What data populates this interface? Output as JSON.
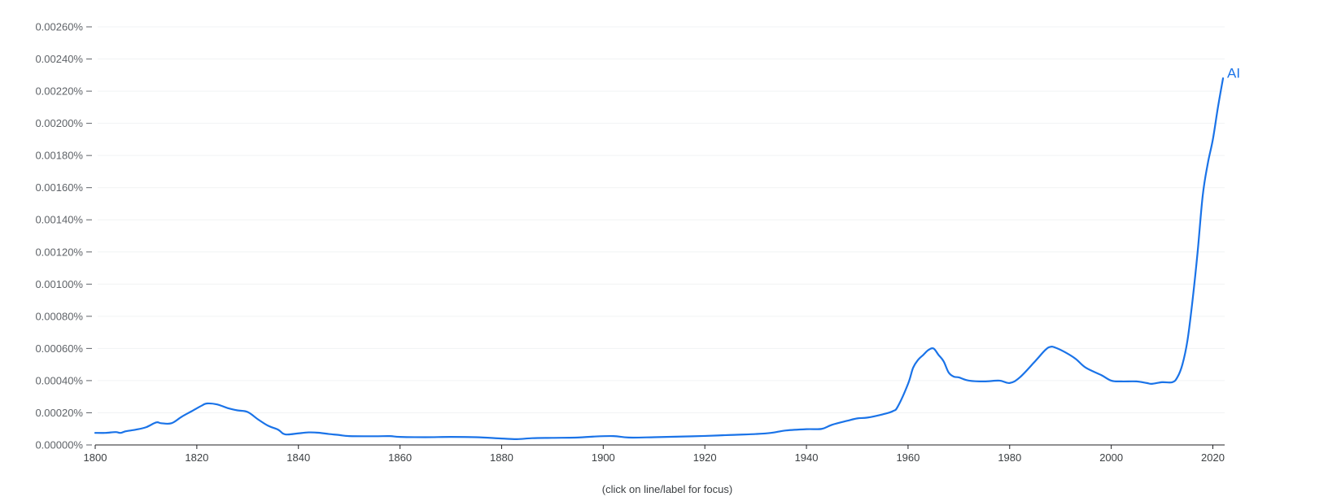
{
  "chart_data": {
    "type": "line",
    "title": "",
    "xlabel": "",
    "ylabel": "",
    "xlim": [
      1800,
      2022
    ],
    "ylim": [
      0,
      0.0026
    ],
    "grid": true,
    "y_ticks": [
      {
        "value": 0.0,
        "label": "0.00000%"
      },
      {
        "value": 0.0002,
        "label": "0.00020%"
      },
      {
        "value": 0.0004,
        "label": "0.00040%"
      },
      {
        "value": 0.0006,
        "label": "0.00060%"
      },
      {
        "value": 0.0008,
        "label": "0.00080%"
      },
      {
        "value": 0.001,
        "label": "0.00100%"
      },
      {
        "value": 0.0012,
        "label": "0.00120%"
      },
      {
        "value": 0.0014,
        "label": "0.00140%"
      },
      {
        "value": 0.0016,
        "label": "0.00160%"
      },
      {
        "value": 0.0018,
        "label": "0.00180%"
      },
      {
        "value": 0.002,
        "label": "0.00200%"
      },
      {
        "value": 0.0022,
        "label": "0.00220%"
      },
      {
        "value": 0.0024,
        "label": "0.00240%"
      },
      {
        "value": 0.0026,
        "label": "0.00260%"
      }
    ],
    "x_ticks": [
      {
        "value": 1800,
        "label": "1800"
      },
      {
        "value": 1820,
        "label": "1820"
      },
      {
        "value": 1840,
        "label": "1840"
      },
      {
        "value": 1860,
        "label": "1860"
      },
      {
        "value": 1880,
        "label": "1880"
      },
      {
        "value": 1900,
        "label": "1900"
      },
      {
        "value": 1920,
        "label": "1920"
      },
      {
        "value": 1940,
        "label": "1940"
      },
      {
        "value": 1960,
        "label": "1960"
      },
      {
        "value": 1980,
        "label": "1980"
      },
      {
        "value": 2000,
        "label": "2000"
      },
      {
        "value": 2020,
        "label": "2020"
      }
    ],
    "series": [
      {
        "name": "AI",
        "color": "#1a73e8",
        "points": [
          [
            1800,
            7.5e-05
          ],
          [
            1802,
            7.5e-05
          ],
          [
            1804,
            8e-05
          ],
          [
            1805,
            7.5e-05
          ],
          [
            1806,
            8.5e-05
          ],
          [
            1808,
            9.5e-05
          ],
          [
            1810,
            0.00011
          ],
          [
            1812,
            0.00014
          ],
          [
            1813,
            0.000135
          ],
          [
            1815,
            0.000135
          ],
          [
            1817,
            0.000175
          ],
          [
            1819,
            0.00021
          ],
          [
            1821,
            0.000245
          ],
          [
            1822,
            0.000258
          ],
          [
            1824,
            0.000252
          ],
          [
            1826,
            0.00023
          ],
          [
            1828,
            0.000215
          ],
          [
            1830,
            0.000205
          ],
          [
            1832,
            0.00016
          ],
          [
            1834,
            0.00012
          ],
          [
            1836,
            9.5e-05
          ],
          [
            1837,
            7e-05
          ],
          [
            1838,
            6.5e-05
          ],
          [
            1840,
            7.2e-05
          ],
          [
            1842,
            7.8e-05
          ],
          [
            1844,
            7.6e-05
          ],
          [
            1846,
            6.8e-05
          ],
          [
            1848,
            6.2e-05
          ],
          [
            1850,
            5.5e-05
          ],
          [
            1855,
            5.4e-05
          ],
          [
            1858,
            5.5e-05
          ],
          [
            1860,
            5e-05
          ],
          [
            1865,
            4.8e-05
          ],
          [
            1870,
            5e-05
          ],
          [
            1875,
            4.8e-05
          ],
          [
            1880,
            4e-05
          ],
          [
            1883,
            3.6e-05
          ],
          [
            1886,
            4.2e-05
          ],
          [
            1890,
            4.4e-05
          ],
          [
            1895,
            4.6e-05
          ],
          [
            1898,
            5.2e-05
          ],
          [
            1902,
            5.5e-05
          ],
          [
            1905,
            4.6e-05
          ],
          [
            1910,
            4.8e-05
          ],
          [
            1915,
            5.2e-05
          ],
          [
            1920,
            5.6e-05
          ],
          [
            1925,
            6.2e-05
          ],
          [
            1930,
            6.8e-05
          ],
          [
            1933,
            7.5e-05
          ],
          [
            1936,
            9e-05
          ],
          [
            1940,
            9.8e-05
          ],
          [
            1943,
            0.0001
          ],
          [
            1945,
            0.000125
          ],
          [
            1948,
            0.00015
          ],
          [
            1950,
            0.000165
          ],
          [
            1952,
            0.00017
          ],
          [
            1955,
            0.00019
          ],
          [
            1957,
            0.00021
          ],
          [
            1958,
            0.00024
          ],
          [
            1960,
            0.00038
          ],
          [
            1961,
            0.00048
          ],
          [
            1962,
            0.00053
          ],
          [
            1963,
            0.00056
          ],
          [
            1964,
            0.00059
          ],
          [
            1965,
            0.0006
          ],
          [
            1966,
            0.00056
          ],
          [
            1967,
            0.00052
          ],
          [
            1968,
            0.00045
          ],
          [
            1969,
            0.000425
          ],
          [
            1970,
            0.00042
          ],
          [
            1972,
            0.0004
          ],
          [
            1975,
            0.000395
          ],
          [
            1978,
            0.0004
          ],
          [
            1980,
            0.000385
          ],
          [
            1982,
            0.00042
          ],
          [
            1985,
            0.00052
          ],
          [
            1987,
            0.00059
          ],
          [
            1988,
            0.00061
          ],
          [
            1989,
            0.000605
          ],
          [
            1991,
            0.000575
          ],
          [
            1993,
            0.000535
          ],
          [
            1995,
            0.00048
          ],
          [
            1998,
            0.000435
          ],
          [
            2000,
            0.0004
          ],
          [
            2002,
            0.000395
          ],
          [
            2005,
            0.000395
          ],
          [
            2007,
            0.000385
          ],
          [
            2008,
            0.00038
          ],
          [
            2010,
            0.00039
          ],
          [
            2012,
            0.00039
          ],
          [
            2013,
            0.00042
          ],
          [
            2014,
            0.0005
          ],
          [
            2015,
            0.00065
          ],
          [
            2016,
            0.0009
          ],
          [
            2017,
            0.0012
          ],
          [
            2018,
            0.00155
          ],
          [
            2019,
            0.00175
          ],
          [
            2020,
            0.0019
          ],
          [
            2021,
            0.0021
          ],
          [
            2022,
            0.00228
          ]
        ]
      }
    ]
  },
  "footer": {
    "note": "(click on line/label for focus)"
  }
}
